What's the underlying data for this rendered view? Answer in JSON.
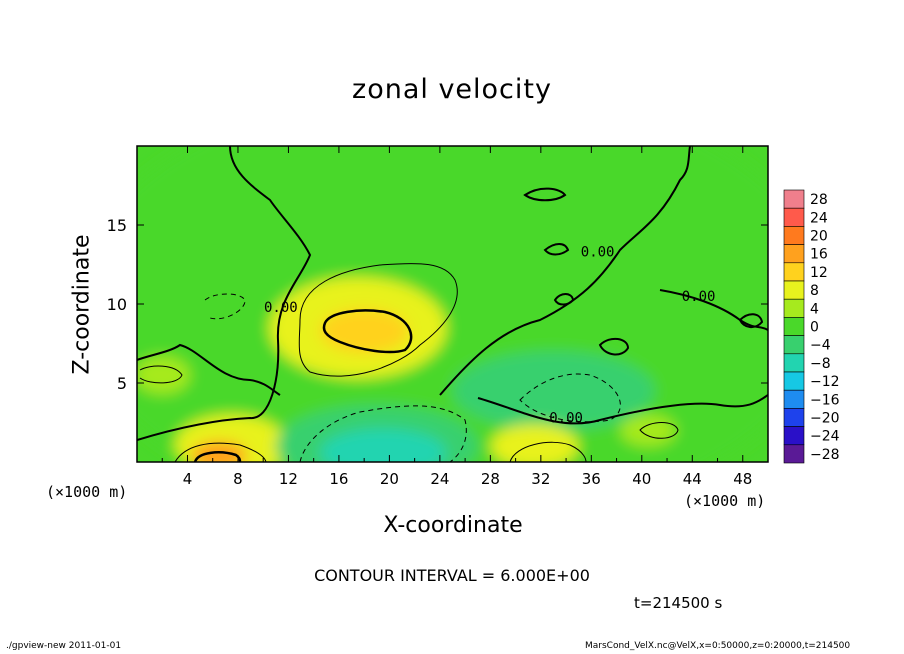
{
  "title": "zonal velocity",
  "contour_interval": "CONTOUR INTERVAL = 6.000E+00",
  "time_label": "t=214500 s",
  "footer_left": "./gpview-new  2011-01-01",
  "footer_right": "MarsCond_VelX.nc@VelX,x=0:50000,z=0:20000,t=214500",
  "colors": {
    "contour": "#000000"
  },
  "chart_data": {
    "type": "heatmap",
    "title": "zonal velocity",
    "xlabel": "X-coordinate",
    "ylabel": "Z-coordinate",
    "x_unit": "(×1000 m)",
    "y_unit": "(×1000 m)",
    "xlim": [
      0,
      50
    ],
    "ylim": [
      0,
      20
    ],
    "x_ticks": [
      4,
      8,
      12,
      16,
      20,
      24,
      28,
      32,
      36,
      40,
      44,
      48
    ],
    "y_ticks": [
      5,
      10,
      15
    ],
    "contour_labels": [
      {
        "text": "0.00",
        "x": 11.4,
        "z": 9.5
      },
      {
        "text": "0.00",
        "x": 36.5,
        "z": 13.0
      },
      {
        "text": "0.00",
        "x": 44.5,
        "z": 10.2
      },
      {
        "text": "0.00",
        "x": 34.0,
        "z": 2.5
      }
    ],
    "colorbar": {
      "levels": [
        28,
        24,
        20,
        16,
        12,
        8,
        4,
        0,
        -4,
        -8,
        -12,
        -16,
        -20,
        -24,
        -28
      ],
      "colors": [
        "#f07f8c",
        "#ff5a4b",
        "#ff7a1e",
        "#ffa11e",
        "#ffd21e",
        "#e8f21e",
        "#a6ea1e",
        "#4ad82a",
        "#38d06e",
        "#22d4b0",
        "#16c8e4",
        "#1e8cf0",
        "#1e42ec",
        "#2a10c8",
        "#5a1a96"
      ]
    },
    "regions": [
      {
        "x": 25,
        "z": 10,
        "rx": 30,
        "rz": 14,
        "value": 1.5
      },
      {
        "x": 17.5,
        "z": 8.5,
        "rx": 7,
        "rz": 3.2,
        "value": 7
      },
      {
        "x": 18,
        "z": 8.3,
        "rx": 3.5,
        "rz": 1.4,
        "value": 12
      },
      {
        "x": 7.5,
        "z": 1.0,
        "rx": 4.5,
        "rz": 2.0,
        "value": 8
      },
      {
        "x": 6.5,
        "z": 0.4,
        "rx": 2.2,
        "rz": 0.9,
        "value": 14
      },
      {
        "x": 19,
        "z": 1.0,
        "rx": 8,
        "rz": 2.6,
        "value": -5
      },
      {
        "x": 19.5,
        "z": 0.6,
        "rx": 5,
        "rz": 1.5,
        "value": -10
      },
      {
        "x": 33,
        "z": 4.5,
        "rx": 8,
        "rz": 2.5,
        "value": -4
      },
      {
        "x": 31.5,
        "z": 1.0,
        "rx": 3.5,
        "rz": 1.4,
        "value": 6
      },
      {
        "x": 2,
        "z": 5.5,
        "rx": 2.2,
        "rz": 1.2,
        "value": 5
      },
      {
        "x": 40.5,
        "z": 2.0,
        "rx": 2.2,
        "rz": 1.0,
        "value": 5
      },
      {
        "x": 7,
        "z": 10.5,
        "rx": 3.5,
        "rz": 1.6,
        "value": -2
      },
      {
        "x": 45.5,
        "z": 8.5,
        "rx": 6,
        "rz": 3,
        "value": -2
      }
    ]
  }
}
